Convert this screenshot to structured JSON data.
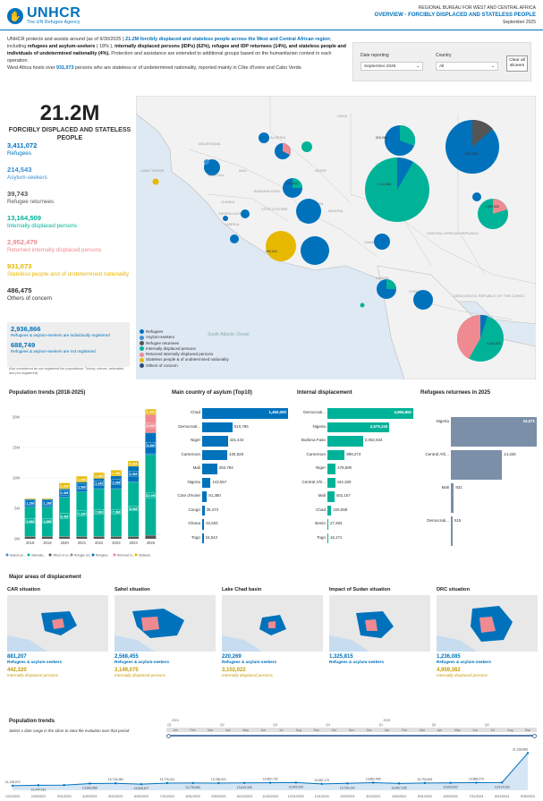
{
  "header": {
    "logo_text": "UNHCR",
    "logo_sub": "The UN Refugee Agency",
    "bureau": "REGIONAL BUREAU FOR WEST AND CENTRAL AFRICA",
    "title": "OVERVIEW - FORCIBLY DISPLACED AND STATELESS PEOPLE",
    "date": "September 2025"
  },
  "intro": {
    "p1a": "UNHCR protects and assists around (as of 9/30/2025 ) ",
    "p1b": "21.2M forcibly displaced and stateless people across the West and Central African region",
    "p1c": "; including ",
    "p1d": "refugees and asylum-seekers",
    "p1e": " ( 18% ), ",
    "p1f": "internally displaced persons (IDPs) (62%), refugee and IDP returnees (14%), and stateless people and individuals of undetermined nationality (4%).",
    "p1g": " Protection and assistance are extended to additional groups based on the humanitarian context in each operation.",
    "p2a": "West Africa hosts over ",
    "p2b": "931,073",
    "p2c": " persons who are stateless or of undetermined nationality, reported mainly in Côte d'Ivoire and Cabo Verde."
  },
  "filters": {
    "date_label": "Date reporting",
    "date_value": "September 2025",
    "country_label": "Country",
    "country_value": "All",
    "clear_label": "Clear all sliceers"
  },
  "summary": {
    "total": "21.2M",
    "total_label": "FORCIBLY DISPLACED AND STATELESS PEOPLE",
    "stats": [
      {
        "value": "3,411,072",
        "label": "Refugees",
        "color": "#0072bc"
      },
      {
        "value": "214,543",
        "label": "Asylum-seekers",
        "color": "#3a8fd4"
      },
      {
        "value": "39,743",
        "label": "Refugee returnees",
        "color": "#555555"
      },
      {
        "value": "13,164,509",
        "label": "Internally displaced persons",
        "color": "#00b398"
      },
      {
        "value": "2,952,479",
        "label": "Returned internally displaced persons",
        "color": "#ef8a91"
      },
      {
        "value": "931,073",
        "label": "Stateless people and of undetermined nationality",
        "color": "#e6b800"
      },
      {
        "value": "486,475",
        "label": "Others of concern",
        "color": "#333333"
      }
    ],
    "box_v1": "2,936,866",
    "box_l1": "Refugees & asylum-seekers are individually registered",
    "box_v2": "688,749",
    "box_l2": "Refugees & asylum-seekers are not registered",
    "footnote": "(Not considered as not registered the populations: Turkey, crimes, estimated and pre-registered)"
  },
  "map": {
    "countries": [
      "MALI",
      "NIGER",
      "CHAD",
      "NIGERIA",
      "BURKINA FASO",
      "SENEGAL",
      "GUINEA",
      "CÔTE D'IVOIRE",
      "GHANA",
      "CAMEROON",
      "CENTRAL AFRICAN REPUBLIC",
      "DEMOCRATIC REPUBLIC OF THE CONGO",
      "CONGO",
      "GABON",
      "SUDAN",
      "LIBYA",
      "ALGERIA",
      "MAURITANIA",
      "CABO VERDE",
      "LIBERIA",
      "SIERRA LEONE",
      "TOGO",
      "BENIN"
    ],
    "sea": "South Atlantic Ocean",
    "labels": [
      "900,944",
      "194,543",
      "1,640,546",
      "2,114,565",
      "1,060,568",
      "520,998",
      "4,346,548"
    ]
  },
  "legend": [
    {
      "label": "Refugees",
      "color": "#0072bc"
    },
    {
      "label": "Asylum-seekers",
      "color": "#3a8fd4"
    },
    {
      "label": "Refugee returnees",
      "color": "#555555"
    },
    {
      "label": "Internally displaced persons",
      "color": "#00b398"
    },
    {
      "label": "Returned internally displaced persons",
      "color": "#ef8a91"
    },
    {
      "label": "Stateless people & of undetermined nationality",
      "color": "#e6b800"
    },
    {
      "label": "Others of concern",
      "color": "#2b4d7a"
    }
  ],
  "chart_data": [
    {
      "type": "bar",
      "title": "Population trends (2018-2025)",
      "categories": [
        "2018",
        "2019",
        "2020",
        "2021",
        "2022",
        "2023",
        "2024",
        "2025"
      ],
      "yticks": [
        "20M",
        "15M",
        "10M",
        "5M",
        "0M"
      ],
      "ylim": [
        0,
        20
      ],
      "series": [
        {
          "name": "Asylum-se...",
          "color": "#3a8fd4",
          "values": [
            0.1,
            0.1,
            0.1,
            0.1,
            0.1,
            0.1,
            0.1,
            0.2
          ]
        },
        {
          "name": "Internally...",
          "color": "#00b398",
          "values": [
            4.8,
            4.8,
            6.4,
            7.3,
            7.8,
            7.8,
            8.9,
            13.2
          ]
        },
        {
          "name": "Others of co...",
          "color": "#555555",
          "values": [
            0.3,
            0.3,
            0.3,
            0.3,
            0.3,
            0.3,
            0.3,
            0.5
          ]
        },
        {
          "name": "Refugee ret...",
          "color": "#888888",
          "values": [
            0.1,
            0.1,
            0.1,
            0.1,
            0.1,
            0.1,
            0.1,
            0.1
          ]
        },
        {
          "name": "Refugees",
          "color": "#0072bc",
          "values": [
            1.2,
            1.2,
            1.3,
            1.5,
            1.6,
            2.0,
            2.5,
            3.4
          ]
        },
        {
          "name": "Returned in...",
          "color": "#ef8a91",
          "values": [
            0,
            0,
            0,
            0,
            0,
            0,
            0,
            3.0
          ]
        },
        {
          "name": "Stateless",
          "color": "#e6b800",
          "values": [
            0.1,
            0.1,
            1.0,
            1.0,
            1.0,
            1.0,
            0.9,
            0.9
          ]
        }
      ],
      "value_labels": {
        "idp": [
          "4.8M",
          "4.8M",
          "6.4M",
          "7.3M",
          "7.8M",
          "7.8M",
          "8.9M",
          "13.2M"
        ],
        "ref": [
          "1.2M",
          "1.2M",
          "1.3M",
          "1.5M",
          "1.6M",
          "2.0M",
          "2.5M",
          "3.4M"
        ],
        "stl": [
          "",
          "",
          "1.0M",
          "1.0M",
          "1.0M",
          "1.0M",
          "0.9M",
          "0.9M"
        ],
        "ret": [
          "",
          "",
          "",
          "",
          "",
          "",
          "",
          "3.0M"
        ]
      }
    },
    {
      "type": "bar",
      "title": "Main country of asylum (Top10)",
      "categories": [
        "Chad",
        "Democrati...",
        "Niger",
        "Cameroon",
        "Mali",
        "Nigeria",
        "Cote d'Ivoire",
        "Congo",
        "Ghana",
        "Togo"
      ],
      "values": [
        1450000,
        510786,
        431444,
        425528,
        253784,
        142557,
        81380,
        39473,
        32603,
        24542
      ],
      "labels": [
        "1,450,000",
        "510,786",
        "431,444",
        "425,528",
        "253,784",
        "142,557",
        "81,380",
        "39,473",
        "32,603",
        "24,542"
      ],
      "color": "#0072bc"
    },
    {
      "type": "bar",
      "title": "Internal displacement",
      "categories": [
        "Democrati...",
        "Nigeria",
        "Burkina Faso",
        "Cameroon",
        "Niger",
        "Central Afri...",
        "Mali",
        "Chad",
        "Benin",
        "Togo"
      ],
      "values": [
        4966862,
        3575118,
        2062534,
        999273,
        478590,
        442330,
        402157,
        225069,
        27284,
        16171
      ],
      "labels": [
        "4,966,862",
        "3,575,118",
        "2,062,534",
        "999,273",
        "478,590",
        "442,330",
        "402,157",
        "225,069",
        "27,284",
        "16,171"
      ],
      "color": "#00b398"
    },
    {
      "type": "bar",
      "title": "Refugees returnees in 2025",
      "categories": [
        "Nigeria",
        "Central Afri...",
        "Mali",
        "Democrati..."
      ],
      "values": [
        24071,
        14326,
        831,
        515
      ],
      "labels": [
        "24,071",
        "14,326",
        "831",
        "515"
      ],
      "color": "#7b8fa8"
    },
    {
      "type": "line",
      "title": "Population trends",
      "subtitle": "Select a date range in the slicer to view the evolution over that period",
      "x": [
        "1/31/2023",
        "2/28/2023",
        "3/31/2023",
        "4/30/2023",
        "5/31/2023",
        "6/30/2023",
        "7/31/2023",
        "8/31/2023",
        "9/30/2023",
        "10/31/2023",
        "11/30/2023",
        "12/31/2023",
        "1/31/2024",
        "2/29/2024",
        "3/31/2024",
        "4/30/2024",
        "5/31/2024",
        "6/30/2024",
        "7/31/2024",
        "8/31/2024",
        "9/30/2024"
      ],
      "y": [
        13128972,
        13240913,
        13276010,
        13663689,
        13715484,
        13508677,
        13776011,
        13790560,
        13768921,
        13815328,
        13862732,
        13899920,
        13587173,
        13700241,
        13882965,
        13687155,
        13793603,
        13832832,
        13868279,
        13914263,
        21166866
      ],
      "point_labels": [
        "13,128,972",
        "13,240,913",
        "",
        "13,663,689",
        "13,715,484",
        "13,508,677",
        "13,776,011",
        "13,790,560",
        "13,768,921",
        "13,815,328",
        "13,862,732",
        "13,899,920",
        "13,587,173",
        "13,700,241",
        "13,882,965",
        "13,687,155",
        "13,793,603",
        "13,832,832",
        "13,868,279",
        "13,914,263",
        "21,166,866"
      ],
      "color": "#0072bc"
    }
  ],
  "crises": {
    "section_title": "Major areas of displacement",
    "items": [
      {
        "title": "CAR situation",
        "v1": "881,207",
        "l1": "Refugees & asylum-seekers",
        "v2": "442,320",
        "l2": "Internally displaced persons"
      },
      {
        "title": "Sahel situation",
        "v1": "2,568,455",
        "l1": "Refugees & asylum-seekers",
        "v2": "3,149,075",
        "l2": "Internally displaced persons"
      },
      {
        "title": "Lake Chad basin",
        "v1": "220,269",
        "l1": "Refugees & asylum-seekers",
        "v2": "3,102,022",
        "l2": "Internally displaced persons"
      },
      {
        "title": "Impact of Sudan situation",
        "v1": "1,325,815",
        "l1": "Refugees & asylum-seekers",
        "v2": "",
        "l2": ""
      },
      {
        "title": "DRC situation",
        "v1": "1,236,085",
        "l1": "Refugees & asylum-seekers",
        "v2": "4,959,362",
        "l2": "Internally displaced persons"
      }
    ]
  },
  "slider": {
    "years": [
      "2024",
      "2025"
    ],
    "quarters": [
      "Q1",
      "Q2",
      "Q3",
      "Q4",
      "Q1",
      "Q2",
      "Q3"
    ],
    "months": [
      "Jan",
      "Feb",
      "Mar",
      "Apr",
      "May",
      "Jun",
      "Jul",
      "Aug",
      "Sep",
      "Oct",
      "Nov",
      "Dec",
      "Jan",
      "Feb",
      "Mar",
      "Apr",
      "May",
      "Jun",
      "Jul",
      "Aug",
      "Sep"
    ]
  }
}
